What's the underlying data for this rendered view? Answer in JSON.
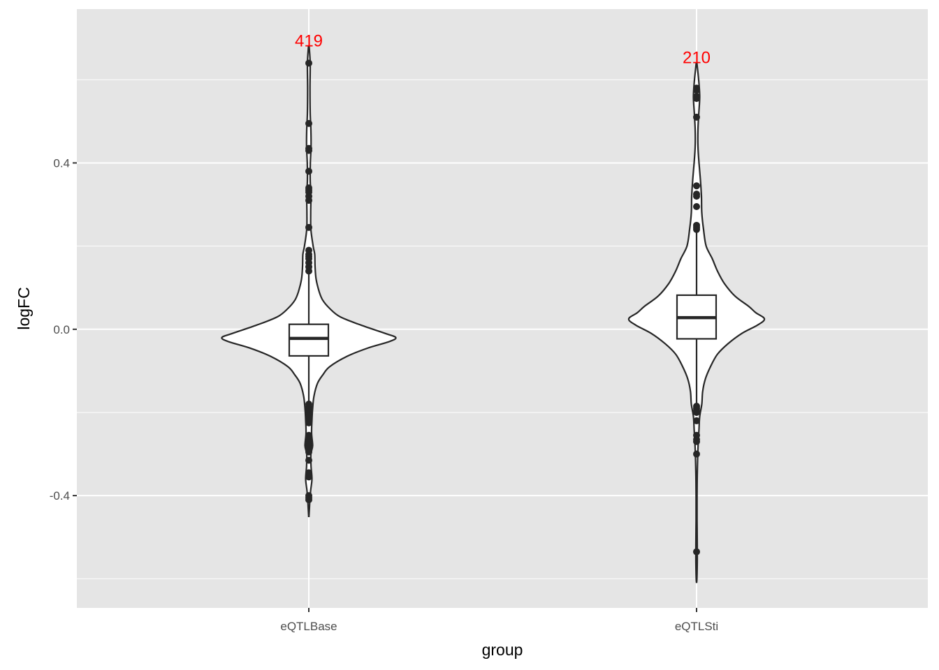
{
  "chart_data": {
    "type": "violin",
    "xlabel": "group",
    "ylabel": "logFC",
    "ylim": [
      -0.67,
      0.77
    ],
    "y_ticks": [
      {
        "value": 0.4,
        "label": "0.4"
      },
      {
        "value": 0.0,
        "label": "0.0"
      },
      {
        "value": -0.4,
        "label": "-0.4"
      }
    ],
    "y_minor": [
      0.6,
      0.2,
      -0.2,
      -0.6
    ],
    "grid": true,
    "panel_color": "#e5e5e5",
    "outline_color": "#262626",
    "annotation_color": "#ff0000",
    "groups": [
      {
        "name": "eQTLBase",
        "count_label": "419",
        "count_y": 0.695,
        "box": {
          "q1": -0.064,
          "median": -0.022,
          "q3": 0.012,
          "whisker_low": -0.175,
          "whisker_high": 0.135
        },
        "violin": [
          [
            0.68,
            0.002
          ],
          [
            0.64,
            0.008
          ],
          [
            0.58,
            0.007
          ],
          [
            0.52,
            0.008
          ],
          [
            0.48,
            0.012
          ],
          [
            0.44,
            0.013
          ],
          [
            0.4,
            0.009
          ],
          [
            0.36,
            0.008
          ],
          [
            0.32,
            0.012
          ],
          [
            0.28,
            0.011
          ],
          [
            0.24,
            0.012
          ],
          [
            0.2,
            0.025
          ],
          [
            0.18,
            0.034
          ],
          [
            0.15,
            0.036
          ],
          [
            0.12,
            0.042
          ],
          [
            0.09,
            0.06
          ],
          [
            0.07,
            0.08
          ],
          [
            0.05,
            0.12
          ],
          [
            0.03,
            0.18
          ],
          [
            0.01,
            0.3
          ],
          [
            -0.01,
            0.44
          ],
          [
            -0.02,
            0.5
          ],
          [
            -0.03,
            0.46
          ],
          [
            -0.045,
            0.34
          ],
          [
            -0.065,
            0.22
          ],
          [
            -0.09,
            0.12
          ],
          [
            -0.11,
            0.08
          ],
          [
            -0.13,
            0.05
          ],
          [
            -0.16,
            0.03
          ],
          [
            -0.19,
            0.022
          ],
          [
            -0.22,
            0.018
          ],
          [
            -0.25,
            0.016
          ],
          [
            -0.28,
            0.022
          ],
          [
            -0.3,
            0.012
          ],
          [
            -0.33,
            0.013
          ],
          [
            -0.36,
            0.018
          ],
          [
            -0.39,
            0.01
          ],
          [
            -0.42,
            0.005
          ],
          [
            -0.45,
            0.001
          ]
        ],
        "outliers": [
          0.64,
          0.495,
          0.435,
          0.43,
          0.38,
          0.34,
          0.335,
          0.33,
          0.32,
          0.31,
          0.245,
          0.19,
          0.18,
          0.175,
          0.17,
          0.16,
          0.15,
          0.14,
          -0.18,
          -0.185,
          -0.19,
          -0.195,
          -0.2,
          -0.205,
          -0.21,
          -0.215,
          -0.22,
          -0.225,
          -0.255,
          -0.26,
          -0.265,
          -0.27,
          -0.275,
          -0.28,
          -0.285,
          -0.29,
          -0.295,
          -0.315,
          -0.345,
          -0.35,
          -0.355,
          -0.4,
          -0.405,
          -0.41
        ]
      },
      {
        "name": "eQTLSti",
        "count_label": "210",
        "count_y": 0.655,
        "box": {
          "q1": -0.023,
          "median": 0.028,
          "q3": 0.082,
          "whisker_low": -0.185,
          "whisker_high": 0.235
        },
        "violin": [
          [
            0.64,
            0.002
          ],
          [
            0.6,
            0.012
          ],
          [
            0.56,
            0.018
          ],
          [
            0.52,
            0.013
          ],
          [
            0.48,
            0.008
          ],
          [
            0.44,
            0.008
          ],
          [
            0.4,
            0.014
          ],
          [
            0.36,
            0.022
          ],
          [
            0.32,
            0.028
          ],
          [
            0.28,
            0.03
          ],
          [
            0.24,
            0.04
          ],
          [
            0.2,
            0.055
          ],
          [
            0.17,
            0.09
          ],
          [
            0.14,
            0.12
          ],
          [
            0.11,
            0.16
          ],
          [
            0.08,
            0.22
          ],
          [
            0.055,
            0.3
          ],
          [
            0.04,
            0.34
          ],
          [
            0.025,
            0.39
          ],
          [
            0.01,
            0.35
          ],
          [
            -0.01,
            0.26
          ],
          [
            -0.035,
            0.18
          ],
          [
            -0.06,
            0.12
          ],
          [
            -0.09,
            0.08
          ],
          [
            -0.12,
            0.05
          ],
          [
            -0.15,
            0.035
          ],
          [
            -0.18,
            0.03
          ],
          [
            -0.21,
            0.018
          ],
          [
            -0.24,
            0.014
          ],
          [
            -0.27,
            0.01
          ],
          [
            -0.3,
            0.007
          ],
          [
            -0.35,
            0.004
          ],
          [
            -0.4,
            0.003
          ],
          [
            -0.46,
            0.003
          ],
          [
            -0.52,
            0.004
          ],
          [
            -0.56,
            0.004
          ],
          [
            -0.6,
            0.002
          ],
          [
            -0.61,
            0.0
          ]
        ],
        "outliers": [
          0.58,
          0.575,
          0.56,
          0.555,
          0.51,
          0.345,
          0.325,
          0.32,
          0.295,
          0.25,
          0.245,
          0.24,
          -0.185,
          -0.19,
          -0.195,
          -0.2,
          -0.22,
          -0.255,
          -0.265,
          -0.27,
          -0.3,
          -0.535
        ]
      }
    ]
  }
}
